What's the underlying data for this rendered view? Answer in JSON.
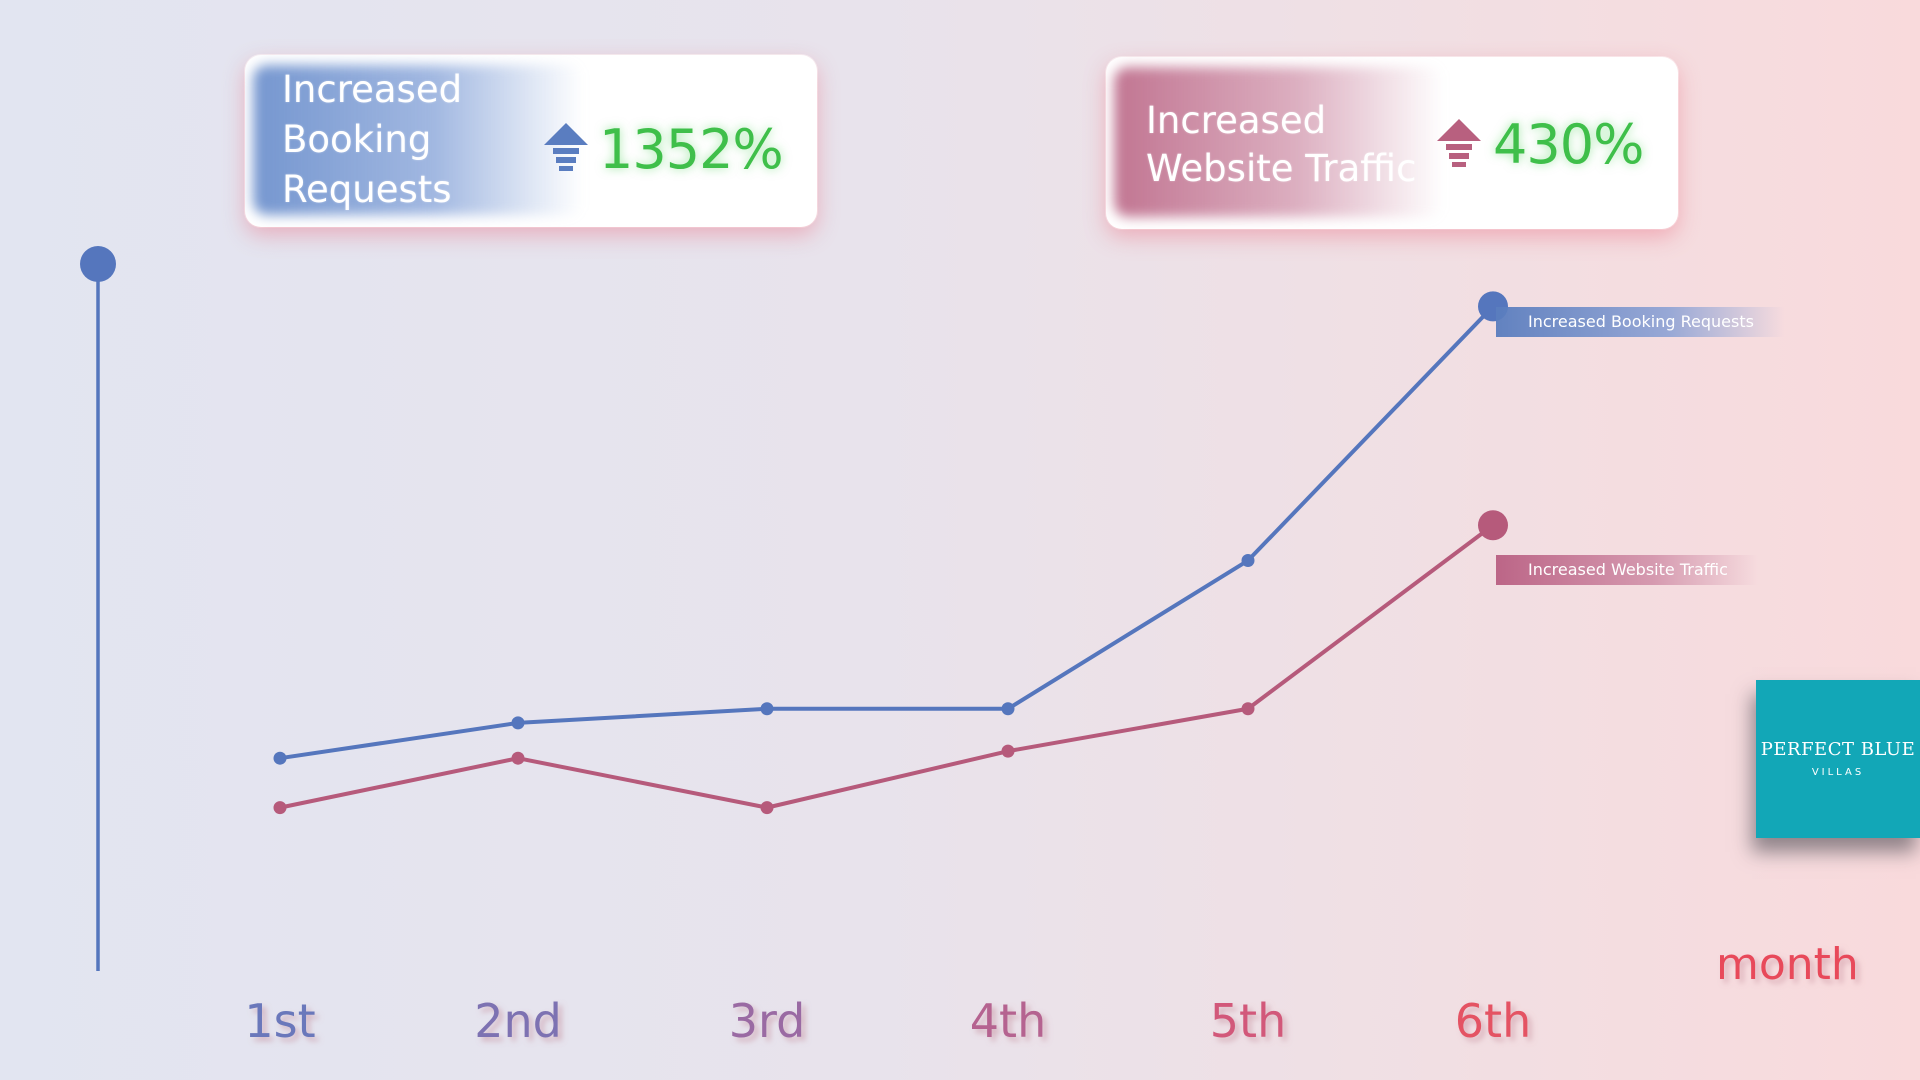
{
  "cards": {
    "booking": {
      "label": "Increased\nBooking\nRequests",
      "value": "1352%",
      "arrow_icon": "up-arrow-icon",
      "color": "#5a7dc0"
    },
    "traffic": {
      "label": "Increased\nWebsite Traffic",
      "value": "430%",
      "arrow_icon": "up-arrow-icon",
      "color": "#b8607f"
    }
  },
  "logo": {
    "line1": "PERFECT BLUE",
    "line2": "VILLAS"
  },
  "chart_data": {
    "type": "line",
    "categories": [
      "1st",
      "2nd",
      "3rd",
      "4th",
      "5th",
      "6th"
    ],
    "xlabel": "month",
    "ylabel": "",
    "ylim": [
      0,
      100
    ],
    "grid": false,
    "series": [
      {
        "name": "Increased Booking Requests",
        "color": "#5576bd",
        "values": [
          30,
          35,
          37,
          37,
          58,
          94
        ]
      },
      {
        "name": "Increased Website Traffic",
        "color": "#b65a7b",
        "values": [
          23,
          30,
          23,
          31,
          37,
          63
        ]
      }
    ]
  }
}
